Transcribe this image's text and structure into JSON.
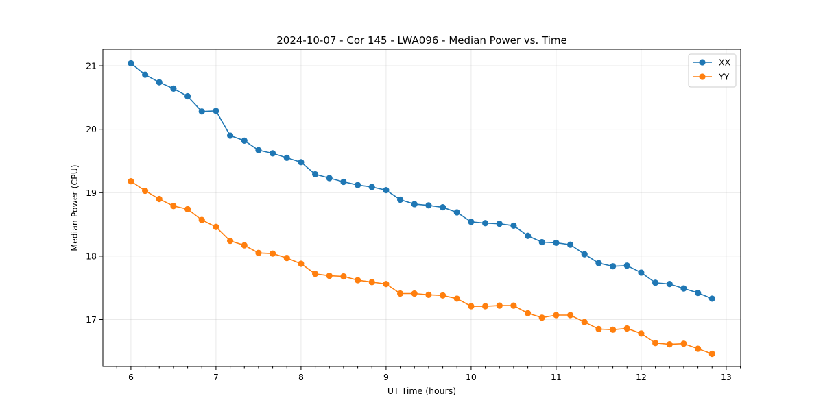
{
  "chart_data": {
    "type": "line",
    "title": "2024-10-07 - Cor 145 - LWA096 - Median Power vs. Time",
    "xlabel": "UT Time (hours)",
    "ylabel": "Median Power (CPU)",
    "xlim": [
      5.67,
      13.17
    ],
    "ylim": [
      16.26,
      21.26
    ],
    "xticks": [
      6,
      7,
      8,
      9,
      10,
      11,
      12,
      13
    ],
    "xtick_labels": [
      "6",
      "7",
      "8",
      "9",
      "10",
      "11",
      "12",
      "13"
    ],
    "yticks": [
      17,
      18,
      19,
      20,
      21
    ],
    "ytick_labels": [
      "17",
      "18",
      "19",
      "20",
      "21"
    ],
    "grid": true,
    "legend_position": "top-right",
    "x": [
      6.0,
      6.1667,
      6.3333,
      6.5,
      6.6667,
      6.8333,
      7.0,
      7.1667,
      7.3333,
      7.5,
      7.6667,
      7.8333,
      8.0,
      8.1667,
      8.3333,
      8.5,
      8.6667,
      8.8333,
      9.0,
      9.1667,
      9.3333,
      9.5,
      9.6667,
      9.8333,
      10.0,
      10.1667,
      10.3333,
      10.5,
      10.6667,
      10.8333,
      11.0,
      11.1667,
      11.3333,
      11.5,
      11.6667,
      11.8333,
      12.0,
      12.1667,
      12.3333,
      12.5,
      12.6667,
      12.8333
    ],
    "series": [
      {
        "name": "XX",
        "color": "#1f77b4",
        "values": [
          21.04,
          20.86,
          20.74,
          20.64,
          20.52,
          20.28,
          20.29,
          19.9,
          19.82,
          19.67,
          19.62,
          19.55,
          19.48,
          19.29,
          19.23,
          19.17,
          19.12,
          19.09,
          19.04,
          18.89,
          18.82,
          18.8,
          18.77,
          18.69,
          18.54,
          18.52,
          18.51,
          18.48,
          18.32,
          18.22,
          18.21,
          18.18,
          18.03,
          17.89,
          17.84,
          17.85,
          17.74,
          17.58,
          17.56,
          17.49,
          17.42,
          17.33
        ]
      },
      {
        "name": "YY",
        "color": "#ff7f0e",
        "values": [
          19.18,
          19.03,
          18.9,
          18.79,
          18.74,
          18.57,
          18.46,
          18.24,
          18.17,
          18.05,
          18.04,
          17.97,
          17.88,
          17.72,
          17.69,
          17.68,
          17.62,
          17.59,
          17.56,
          17.41,
          17.41,
          17.39,
          17.38,
          17.33,
          17.21,
          17.21,
          17.22,
          17.22,
          17.1,
          17.03,
          17.07,
          17.07,
          16.96,
          16.85,
          16.84,
          16.86,
          16.78,
          16.63,
          16.61,
          16.62,
          16.54,
          16.46
        ]
      }
    ]
  }
}
